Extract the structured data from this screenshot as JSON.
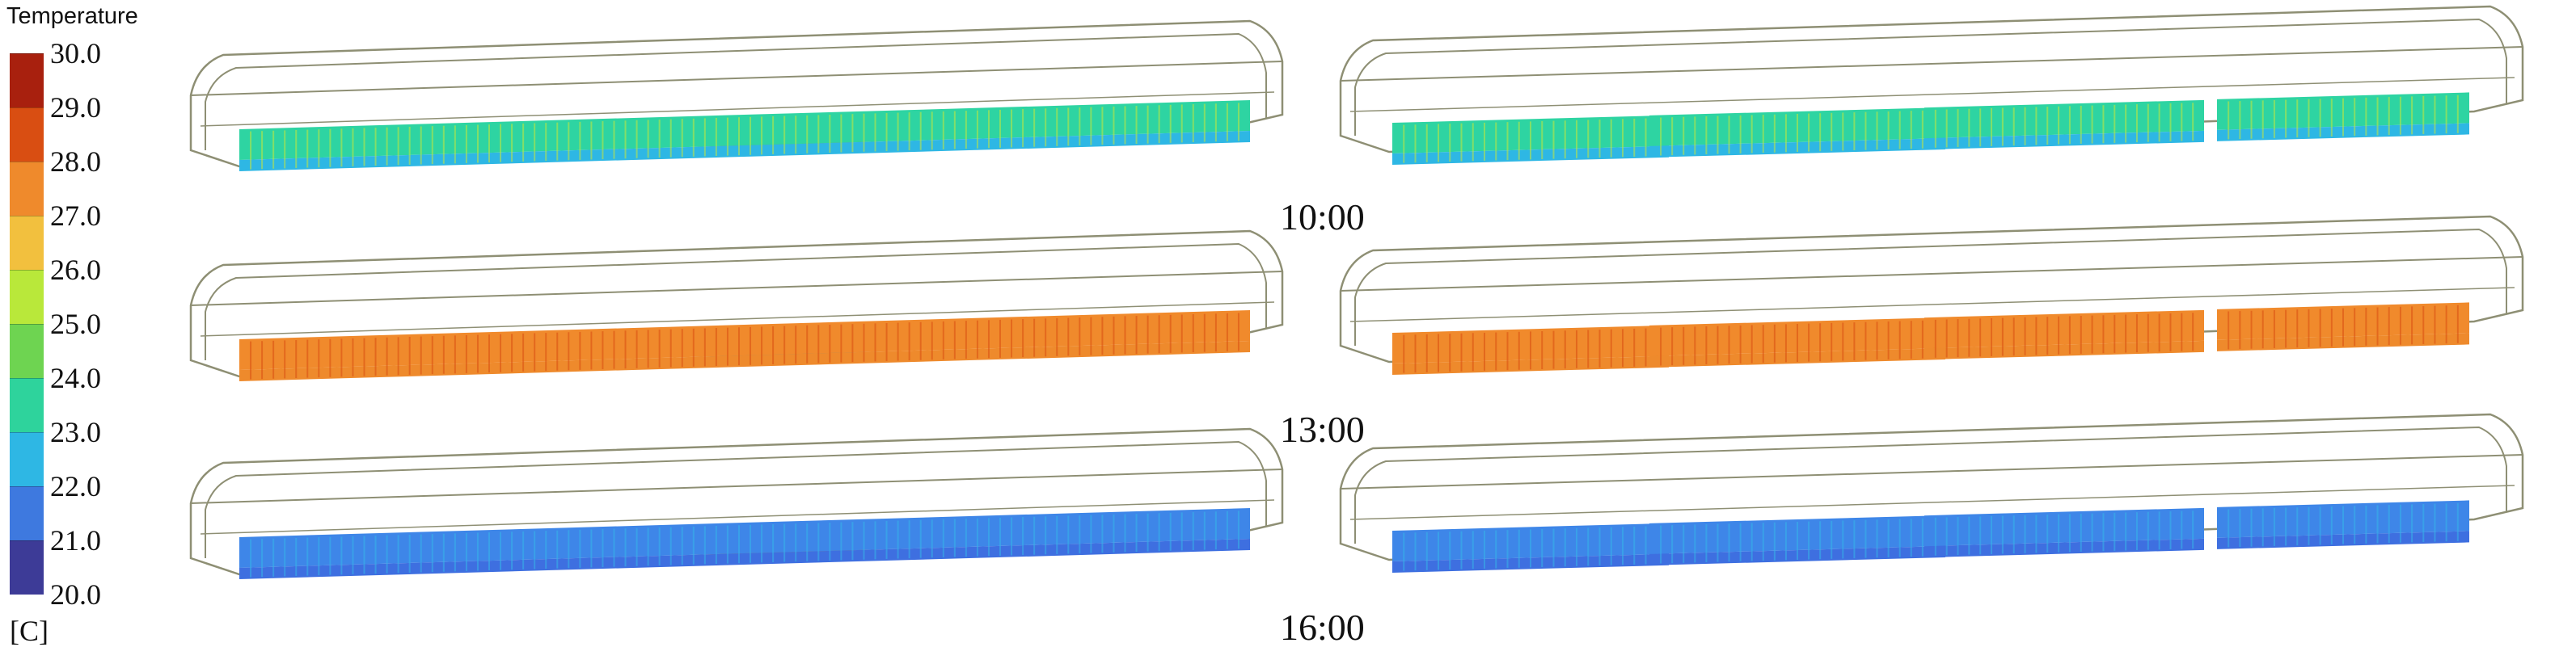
{
  "legend": {
    "title": "Temperature",
    "unit": "[C]",
    "ticks": [
      "30.0",
      "29.0",
      "28.0",
      "27.0",
      "26.0",
      "25.0",
      "24.0",
      "23.0",
      "22.0",
      "21.0",
      "20.0"
    ],
    "band_colors": [
      "#a8200e",
      "#d94e12",
      "#ef8a2c",
      "#f2c03e",
      "#b9e83a",
      "#6ed451",
      "#2ed39c",
      "#2eb7e4",
      "#3e79df",
      "#3d3b97"
    ]
  },
  "rows": [
    {
      "time": "10:00",
      "top_color": "#2ed4a2",
      "side_color": "#2eb7e4",
      "detail_color": "#c8e83a"
    },
    {
      "time": "13:00",
      "top_color": "#f08a2c",
      "side_color": "#ee8a2c",
      "detail_color": "#d94e12"
    },
    {
      "time": "16:00",
      "top_color": "#3e86e8",
      "side_color": "#3e6fe0",
      "detail_color": "#35b6e8"
    }
  ],
  "outline_color": "#8e8f74"
}
